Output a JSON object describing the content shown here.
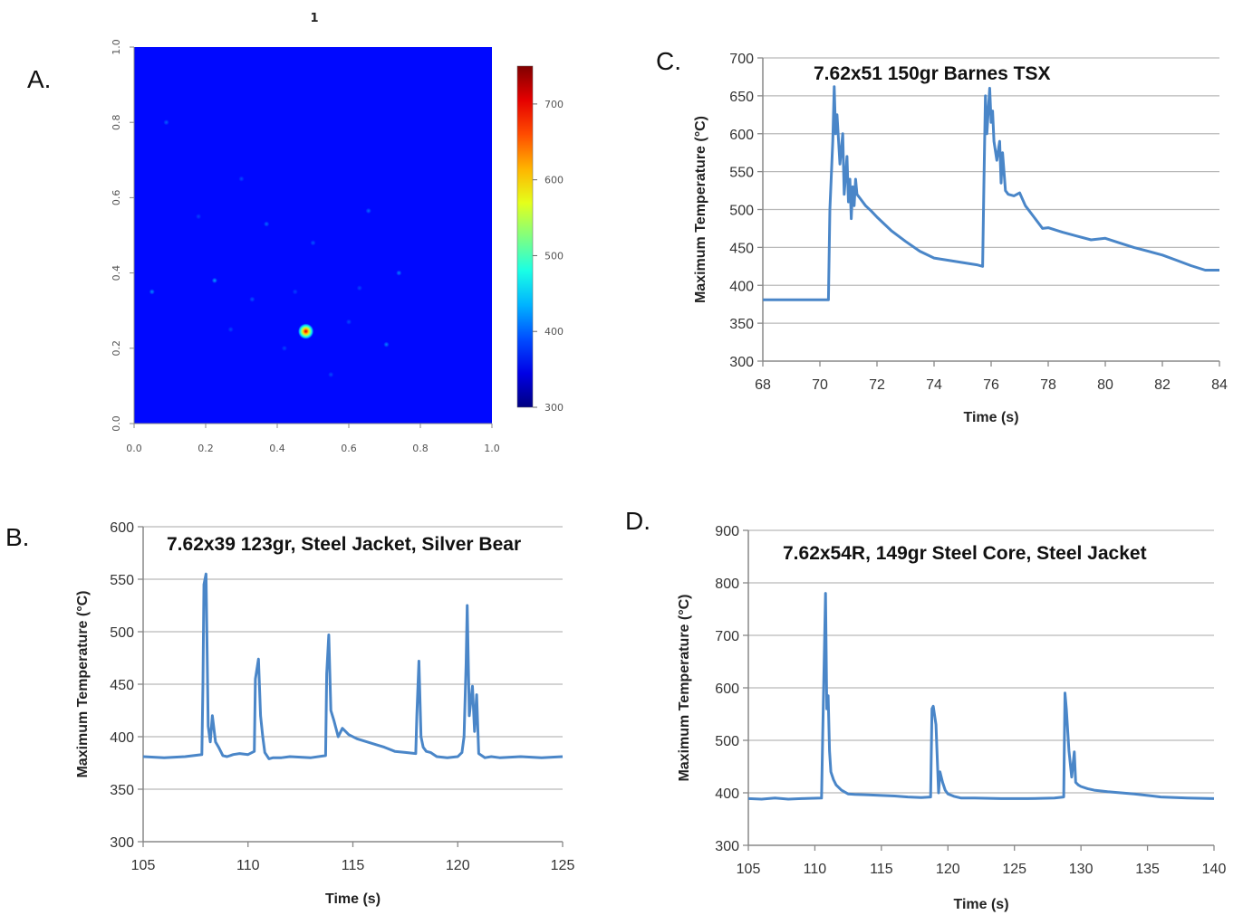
{
  "figure": {
    "panel_letters": [
      "A.",
      "B.",
      "C.",
      "D."
    ]
  },
  "chart_data": [
    {
      "panel": "A.",
      "type": "heatmap",
      "title": "1",
      "xlim": [
        0,
        1
      ],
      "ylim": [
        0,
        1
      ],
      "x_ticks": [
        "0.0",
        "0.2",
        "0.4",
        "0.6",
        "0.8",
        "1.0"
      ],
      "y_ticks": [
        "0.0",
        "0.2",
        "0.4",
        "0.6",
        "0.8",
        "1.0"
      ],
      "colorbar": {
        "range": [
          300,
          750
        ],
        "ticks": [
          "300",
          "400",
          "500",
          "600",
          "700"
        ]
      },
      "background_value": 360,
      "hotspots": [
        {
          "x": 0.48,
          "y": 0.245,
          "value": 720
        },
        {
          "x": 0.225,
          "y": 0.38,
          "value": 430
        },
        {
          "x": 0.05,
          "y": 0.35,
          "value": 420
        },
        {
          "x": 0.74,
          "y": 0.4,
          "value": 415
        },
        {
          "x": 0.705,
          "y": 0.21,
          "value": 415
        },
        {
          "x": 0.37,
          "y": 0.53,
          "value": 405
        },
        {
          "x": 0.655,
          "y": 0.565,
          "value": 405
        },
        {
          "x": 0.09,
          "y": 0.8,
          "value": 400
        },
        {
          "x": 0.33,
          "y": 0.33,
          "value": 395
        },
        {
          "x": 0.5,
          "y": 0.48,
          "value": 395
        },
        {
          "x": 0.6,
          "y": 0.27,
          "value": 390
        },
        {
          "x": 0.3,
          "y": 0.65,
          "value": 390
        },
        {
          "x": 0.55,
          "y": 0.13,
          "value": 390
        },
        {
          "x": 0.42,
          "y": 0.2,
          "value": 388
        },
        {
          "x": 0.27,
          "y": 0.25,
          "value": 388
        },
        {
          "x": 0.63,
          "y": 0.36,
          "value": 388
        },
        {
          "x": 0.45,
          "y": 0.35,
          "value": 386
        },
        {
          "x": 0.18,
          "y": 0.55,
          "value": 386
        }
      ]
    },
    {
      "panel": "B.",
      "type": "line",
      "title": "7.62x39 123gr, Steel Jacket, Silver Bear",
      "xlabel": "Time (s)",
      "ylabel": "Maximum Temperature (°C)",
      "xlim": [
        105,
        125
      ],
      "ylim": [
        300,
        600
      ],
      "x_ticks": [
        105,
        110,
        115,
        120,
        125
      ],
      "y_ticks": [
        300,
        350,
        400,
        450,
        500,
        550,
        600
      ],
      "grid": true,
      "series": [
        {
          "color": "#4a86c8",
          "x": [
            105,
            106,
            107,
            107.8,
            107.85,
            107.9,
            108.0,
            108.1,
            108.2,
            108.3,
            108.45,
            108.6,
            108.8,
            109.0,
            109.3,
            109.6,
            110.0,
            110.3,
            110.35,
            110.5,
            110.6,
            110.7,
            110.8,
            111.0,
            111.2,
            111.6,
            112.0,
            113.0,
            113.7,
            113.75,
            113.85,
            113.95,
            114.1,
            114.3,
            114.5,
            114.8,
            115.2,
            116.0,
            116.5,
            117.0,
            117.5,
            118.0,
            118.05,
            118.15,
            118.25,
            118.35,
            118.5,
            118.7,
            119.0,
            119.5,
            120.0,
            120.2,
            120.3,
            120.4,
            120.45,
            120.55,
            120.7,
            120.8,
            120.9,
            121.0,
            121.3,
            121.6,
            122.0,
            123.0,
            124.0,
            125.0
          ],
          "y": [
            381,
            380,
            381,
            383,
            450,
            545,
            555,
            410,
            395,
            420,
            395,
            390,
            382,
            381,
            383,
            384,
            383,
            386,
            455,
            474,
            420,
            400,
            385,
            379,
            380,
            380,
            381,
            380,
            382,
            460,
            497,
            425,
            415,
            400,
            408,
            402,
            398,
            393,
            390,
            386,
            385,
            384,
            420,
            472,
            400,
            390,
            386,
            385,
            381,
            380,
            381,
            385,
            400,
            470,
            525,
            420,
            448,
            405,
            440,
            384,
            380,
            381,
            380,
            381,
            380,
            381
          ]
        }
      ]
    },
    {
      "panel": "C.",
      "type": "line",
      "title": "7.62x51 150gr Barnes TSX",
      "xlabel": "Time (s)",
      "ylabel": "Maximum Temperature (°C)",
      "xlim": [
        68,
        84
      ],
      "ylim": [
        300,
        700
      ],
      "x_ticks": [
        68,
        70,
        72,
        74,
        76,
        78,
        80,
        82,
        84
      ],
      "y_ticks": [
        300,
        350,
        400,
        450,
        500,
        550,
        600,
        650,
        700
      ],
      "grid": true,
      "series": [
        {
          "color": "#4a86c8",
          "x": [
            68,
            69,
            70,
            70.3,
            70.35,
            70.45,
            70.5,
            70.55,
            70.6,
            70.7,
            70.8,
            70.85,
            70.95,
            71.0,
            71.05,
            71.1,
            71.15,
            71.2,
            71.25,
            71.3,
            71.4,
            71.6,
            71.8,
            72.0,
            72.5,
            73.0,
            73.5,
            74.0,
            74.5,
            75.0,
            75.5,
            75.7,
            75.75,
            75.8,
            75.85,
            75.95,
            76.0,
            76.05,
            76.1,
            76.2,
            76.3,
            76.35,
            76.4,
            76.5,
            76.6,
            76.8,
            77.0,
            77.2,
            77.5,
            77.8,
            78.0,
            78.5,
            79.0,
            79.5,
            80.0,
            80.5,
            81.0,
            81.5,
            82.0,
            82.5,
            83.0,
            83.5,
            84.0
          ],
          "y": [
            381,
            381,
            381,
            381,
            500,
            590,
            662,
            600,
            625,
            560,
            600,
            520,
            570,
            510,
            540,
            488,
            530,
            505,
            540,
            520,
            515,
            505,
            498,
            490,
            472,
            458,
            445,
            436,
            433,
            430,
            427,
            425,
            540,
            650,
            600,
            660,
            615,
            630,
            590,
            565,
            590,
            535,
            575,
            525,
            520,
            518,
            522,
            505,
            490,
            475,
            476,
            470,
            465,
            460,
            462,
            456,
            450,
            445,
            440,
            433,
            426,
            420,
            420
          ]
        }
      ]
    },
    {
      "panel": "D.",
      "type": "line",
      "title": "7.62x54R, 149gr Steel Core, Steel Jacket",
      "xlabel": "Time (s)",
      "ylabel": "Maximum Temperature (°C)",
      "xlim": [
        105,
        140
      ],
      "ylim": [
        300,
        900
      ],
      "x_ticks": [
        105,
        110,
        115,
        120,
        125,
        130,
        135,
        140
      ],
      "y_ticks": [
        300,
        400,
        500,
        600,
        700,
        800,
        900
      ],
      "grid": true,
      "series": [
        {
          "color": "#4a86c8",
          "x": [
            105,
            106,
            107,
            108,
            109,
            110.5,
            110.6,
            110.8,
            110.9,
            111.0,
            111.1,
            111.2,
            111.4,
            111.6,
            112.0,
            112.5,
            113.0,
            114.0,
            115.0,
            116.0,
            117.0,
            118.0,
            118.7,
            118.8,
            118.9,
            119.1,
            119.3,
            119.4,
            119.6,
            119.8,
            120.0,
            120.5,
            121.0,
            122.0,
            124.0,
            126.0,
            128.0,
            128.7,
            128.8,
            128.9,
            129.1,
            129.3,
            129.5,
            129.6,
            129.8,
            130.0,
            130.5,
            131.0,
            132.0,
            134.0,
            136.0,
            138.0,
            140.0
          ],
          "y": [
            389,
            388,
            390,
            388,
            389,
            390,
            520,
            780,
            560,
            585,
            480,
            440,
            425,
            415,
            405,
            398,
            397,
            396,
            395,
            394,
            392,
            391,
            392,
            560,
            565,
            530,
            400,
            440,
            420,
            405,
            398,
            393,
            390,
            390,
            389,
            389,
            390,
            392,
            590,
            560,
            480,
            430,
            478,
            420,
            415,
            412,
            408,
            405,
            402,
            398,
            392,
            390,
            389
          ]
        }
      ]
    }
  ]
}
